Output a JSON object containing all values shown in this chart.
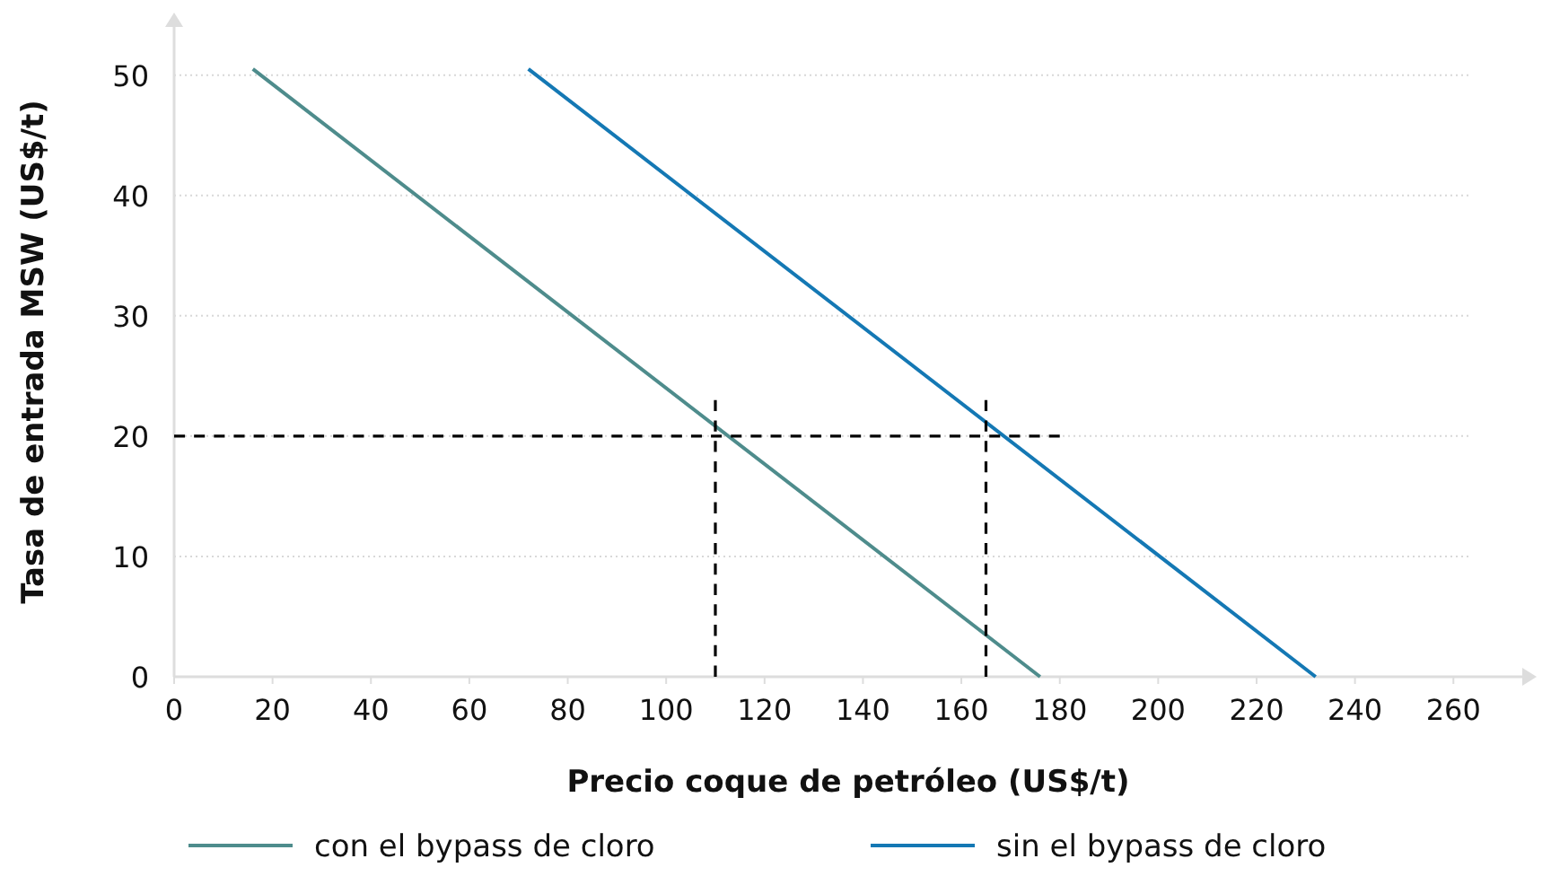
{
  "chart_data": {
    "type": "line",
    "xlabel": "Precio coque de petróleo (US$/t)",
    "ylabel": "Tasa de entrada MSW (US$/t)",
    "series": [
      {
        "name": "con el bypass de cloro",
        "color": "#4e8c8c",
        "x": [
          16,
          176
        ],
        "values": [
          50.5,
          0
        ]
      },
      {
        "name": "sin el bypass de cloro",
        "color": "#1478b4",
        "x": [
          72,
          232
        ],
        "values": [
          50.5,
          0
        ]
      },
      {
        "type": "line",
        "color": "#000000",
        "line_style": "dashed",
        "x": [
          0,
          180
        ],
        "values": [
          20,
          20
        ]
      },
      {
        "type": "line",
        "color": "#000000",
        "line_style": "dashed",
        "x": [
          110,
          110
        ],
        "values": [
          0,
          23
        ]
      },
      {
        "type": "line",
        "color": "#000000",
        "line_style": "dashed",
        "x": [
          165,
          165
        ],
        "values": [
          0,
          23
        ]
      }
    ],
    "xlim": [
      0,
      274
    ],
    "ylim": [
      0,
      54
    ],
    "xticks": [
      0,
      20,
      40,
      60,
      80,
      100,
      120,
      140,
      160,
      180,
      200,
      220,
      240,
      260
    ],
    "yticks": [
      0,
      10,
      20,
      30,
      40,
      50
    ],
    "grid": "y",
    "legend": "bottom",
    "line_style": "solid",
    "marker": "none"
  }
}
